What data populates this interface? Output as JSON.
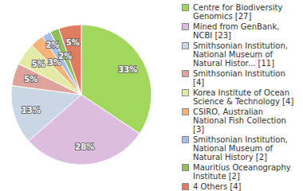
{
  "chart_data": {
    "type": "pie",
    "categories": [
      "Centre for Biodiversity Genomics [27]",
      "Mined from GenBank, NCBI [23]",
      "Smithsonian Institution, National Museum of Natural Histor... [11]",
      "Smithsonian Institution [4]",
      "Korea Institute of Ocean Science & Technology [4]",
      "CSIRO, Australian National Fish Collection [3]",
      "Smithsonian Institution, National Museum of Natural History [2]",
      "Mauritius Oceanography Institute [2]",
      "4 Others [4]"
    ],
    "values": [
      33,
      28,
      13,
      5,
      5,
      3,
      2,
      2,
      5
    ],
    "value_labels": [
      "33%",
      "28%",
      "13%",
      "5%",
      "5%",
      "3%",
      "2%",
      "2%",
      "5%"
    ],
    "colors": [
      "#a3d65c",
      "#dcbde0",
      "#c9d6e3",
      "#e0a39c",
      "#e2eaa5",
      "#f4b479",
      "#a7bde6",
      "#90bf5c",
      "#df7c62"
    ],
    "data_labels": true,
    "legend": "right"
  }
}
